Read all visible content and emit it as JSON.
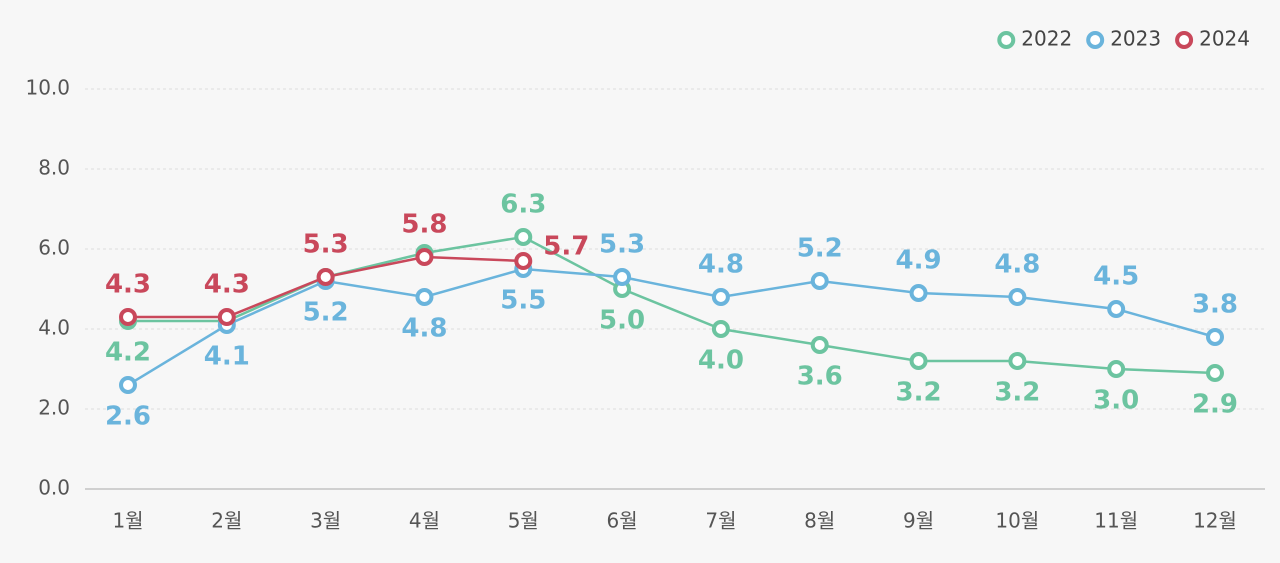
{
  "chart_data": {
    "type": "line",
    "categories": [
      "1월",
      "2월",
      "3월",
      "4월",
      "5월",
      "6월",
      "7월",
      "8월",
      "9월",
      "10월",
      "11월",
      "12월"
    ],
    "ylim": [
      0,
      10
    ],
    "yticks": [
      {
        "value": 0,
        "label": "0.0"
      },
      {
        "value": 2,
        "label": "2.0"
      },
      {
        "value": 4,
        "label": "4.0"
      },
      {
        "value": 6,
        "label": "6.0"
      },
      {
        "value": 8,
        "label": "8.0"
      },
      {
        "value": 10,
        "label": "10.0"
      }
    ],
    "grid": true,
    "legend": "top-right",
    "series": [
      {
        "name": "2022",
        "color": "#6cc4a0",
        "values": [
          4.2,
          4.2,
          5.3,
          5.9,
          6.3,
          5,
          4,
          3.6,
          3.2,
          3.2,
          3,
          2.9
        ],
        "value_labels": [
          "4.2",
          null,
          null,
          null,
          "6.3",
          "5.0",
          "4.0",
          "3.6",
          "3.2",
          "3.2",
          "3.0",
          "2.9"
        ]
      },
      {
        "name": "2023",
        "color": "#6ab4dc",
        "values": [
          2.6,
          4.1,
          5.2,
          4.8,
          5.5,
          5.3,
          4.8,
          5.2,
          4.9,
          4.8,
          4.5,
          3.8
        ],
        "value_labels": [
          "2.6",
          "4.1",
          "5.2",
          "4.8",
          "5.5",
          "5.3",
          "4.8",
          "5.2",
          "4.9",
          "4.8",
          "4.5",
          "3.8"
        ]
      },
      {
        "name": "2024",
        "color": "#c9485b",
        "values": [
          4.3,
          4.3,
          5.3,
          5.8,
          5.7,
          null,
          null,
          null,
          null,
          null,
          null,
          null
        ],
        "value_labels": [
          "4.3",
          "4.3",
          "5.3",
          "5.8",
          "5.7",
          null,
          null,
          null,
          null,
          null,
          null,
          null
        ]
      }
    ]
  }
}
